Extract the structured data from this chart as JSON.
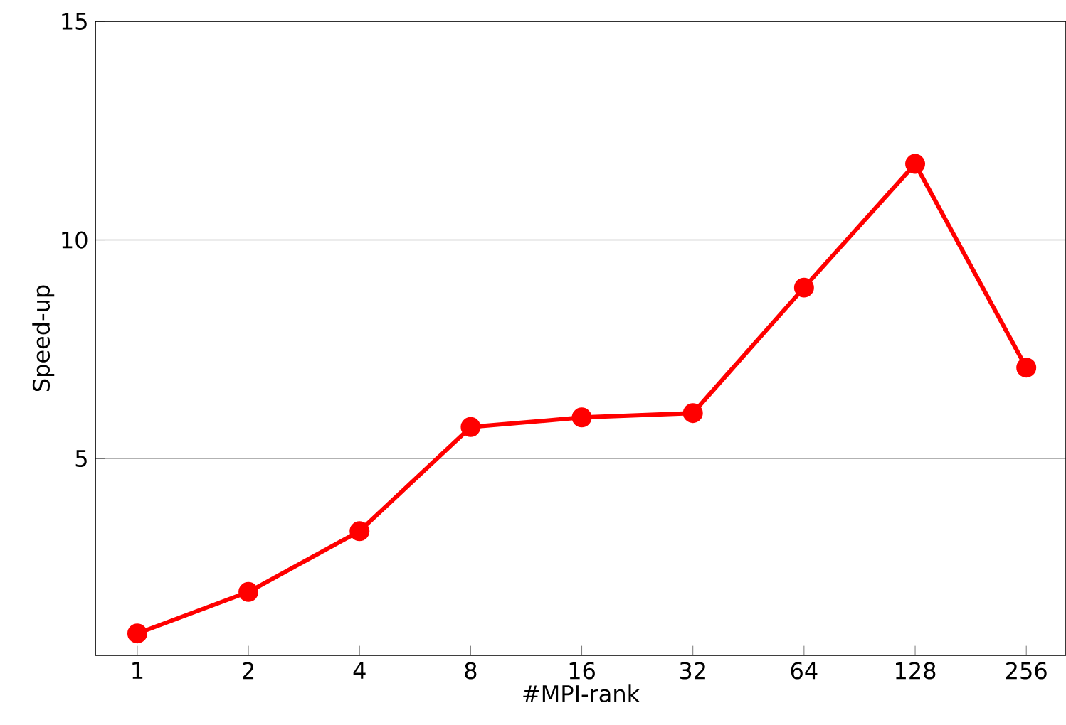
{
  "chart_data": {
    "type": "line",
    "xlabel": "#MPI-rank",
    "ylabel": "Speed-up",
    "log": "x",
    "x": [
      1,
      2,
      4,
      8,
      16,
      32,
      64,
      128,
      256
    ],
    "series": [
      {
        "color": "#ff0000",
        "values": [
          1.0,
          1.95,
          3.34,
          5.72,
          5.94,
          6.04,
          8.91,
          11.74,
          7.08
        ]
      }
    ],
    "xlim": [
      0.77,
      328
    ],
    "ylim": [
      0.5,
      15
    ],
    "xticks": [
      1,
      2,
      4,
      8,
      16,
      32,
      64,
      128,
      256
    ],
    "yticks": [
      5,
      10,
      15
    ],
    "grid": "y",
    "marker": "circle",
    "line_style": "solid"
  }
}
